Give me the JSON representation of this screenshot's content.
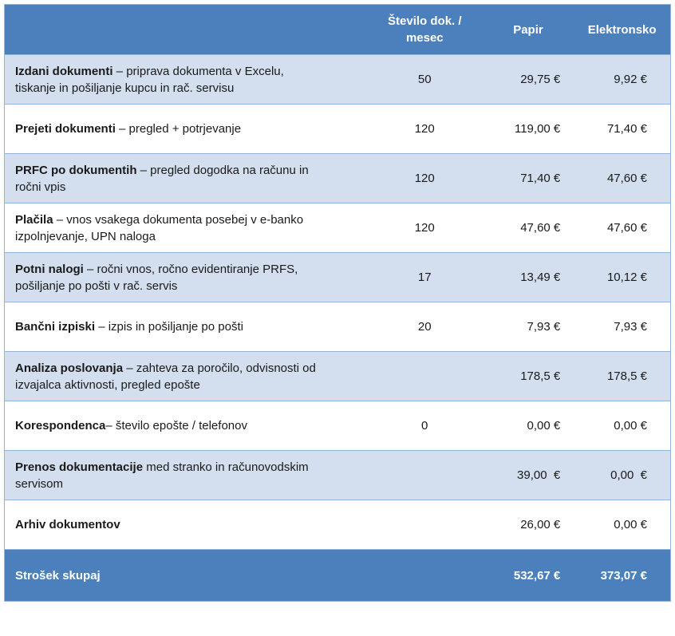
{
  "colors": {
    "header_bg": "#4C80BD",
    "footer_bg": "#4C80BD",
    "row_alt_bg": "#D3DFEE",
    "row_bg": "#FFFFFF",
    "border": "#95B3D7",
    "header_text": "#FFFFFF",
    "body_text": "#1A1A1A"
  },
  "table": {
    "headers": {
      "item": "",
      "count": "Število dok. / mesec",
      "paper": "Papir",
      "electronic": "Elektronsko"
    },
    "rows": [
      {
        "name": "Izdani dokumenti",
        "desc": " – priprava dokumenta v Excelu, tiskanje in pošiljanje kupcu in rač. servisu",
        "count": "50",
        "paper": "29,75 €",
        "electronic": "9,92 €"
      },
      {
        "name": "Prejeti dokumenti",
        "desc": " – pregled + potrjevanje",
        "count": "120",
        "paper": "119,00 €",
        "electronic": "71,40 €"
      },
      {
        "name": "PRFC po dokumentih",
        "desc": " – pregled dogodka na računu in ročni vpis",
        "count": "120",
        "paper": "71,40 €",
        "electronic": "47,60 €"
      },
      {
        "name": "Plačila",
        "desc": " – vnos vsakega dokumenta posebej v e-banko izpolnjevanje, UPN naloga",
        "count": "120",
        "paper": "47,60 €",
        "electronic": "47,60 €"
      },
      {
        "name": "Potni nalogi",
        "desc": " – ročni vnos, ročno evidentiranje PRFS, pošiljanje po pošti v rač. servis",
        "count": "17",
        "paper": "13,49 €",
        "electronic": "10,12 €"
      },
      {
        "name": "Bančni izpiski",
        "desc": " – izpis in pošiljanje po pošti",
        "count": "20",
        "paper": "7,93 €",
        "electronic": "7,93 €"
      },
      {
        "name": "Analiza poslovanja",
        "desc": " – zahteva za poročilo, odvisnosti od izvajalca aktivnosti, pregled epošte",
        "count": "",
        "paper": "178,5 €",
        "electronic": "178,5 €"
      },
      {
        "name": "Korespondenca",
        "desc": "– število epošte / telefonov",
        "count": "0",
        "paper": "0,00 €",
        "electronic": "0,00 €"
      },
      {
        "name": "Prenos dokumentacije",
        "desc": " med stranko in računovodskim servisom",
        "count": "",
        "paper": "39,00  €",
        "electronic": "0,00  €"
      },
      {
        "name": "Arhiv dokumentov",
        "desc": "",
        "count": "",
        "paper": "26,00 €",
        "electronic": "0,00 €"
      }
    ],
    "footer": {
      "label": "Strošek skupaj",
      "paper": "532,67 €",
      "electronic": "373,07 €"
    }
  }
}
